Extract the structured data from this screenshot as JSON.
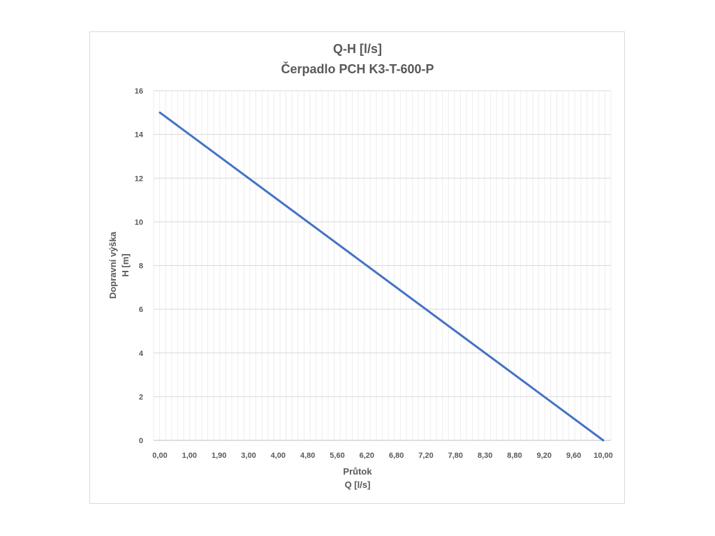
{
  "chart_data": {
    "type": "line",
    "title": "Q-H  [l/s]",
    "subtitle": "Čerpadlo PCH K3-T-600-P",
    "xlabel_line1": "Průtok",
    "xlabel_line2": "Q [l/s]",
    "ylabel_line1": "Dopravní výška",
    "ylabel_line2": "H [m]",
    "ylim": [
      0,
      16
    ],
    "y_ticks": [
      0,
      2,
      4,
      6,
      8,
      10,
      12,
      14,
      16
    ],
    "x_tick_labels": [
      "0,00",
      "1,00",
      "1,90",
      "3,00",
      "4,00",
      "4,80",
      "5,60",
      "6,20",
      "6,80",
      "7,20",
      "7,80",
      "8,30",
      "8,80",
      "9,20",
      "9,60",
      "10,00"
    ],
    "grid": true,
    "legend": "none",
    "series": [
      {
        "color": "#4472c4",
        "x": [
          0.0,
          10.0
        ],
        "y": [
          15.0,
          0.0
        ]
      }
    ]
  }
}
